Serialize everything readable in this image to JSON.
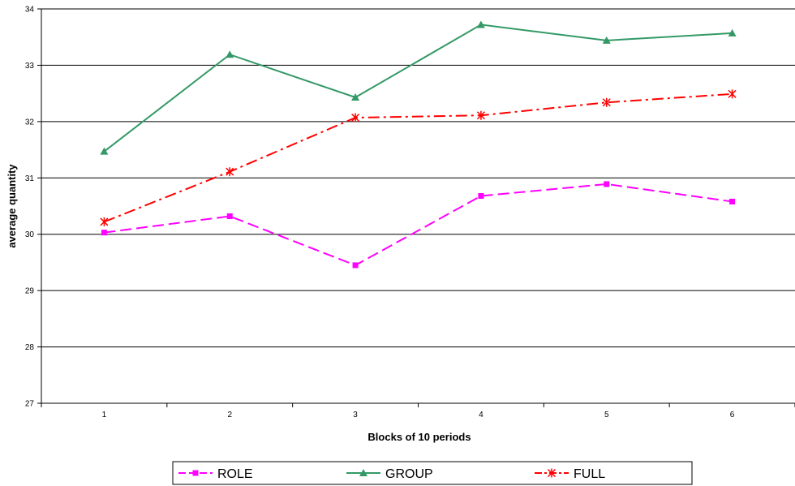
{
  "chart_data": {
    "type": "line",
    "title": "",
    "xlabel": "Blocks of 10 periods",
    "ylabel": "average quantity",
    "categories": [
      "1",
      "2",
      "3",
      "4",
      "5",
      "6"
    ],
    "yticks": [
      "27",
      "28",
      "29",
      "30",
      "31",
      "32",
      "33",
      "34"
    ],
    "ylim": [
      27,
      34
    ],
    "grid": "horizontal major gridlines",
    "legend_position": "bottom",
    "series": [
      {
        "name": "ROLE",
        "values": [
          30.03,
          30.32,
          29.45,
          30.68,
          30.89,
          30.58
        ],
        "color": "#ff00ff",
        "marker": "square",
        "dash": "dashed"
      },
      {
        "name": "GROUP",
        "values": [
          31.47,
          33.19,
          32.43,
          33.72,
          33.44,
          33.57
        ],
        "color": "#339966",
        "marker": "triangle",
        "dash": "solid"
      },
      {
        "name": "FULL",
        "values": [
          30.22,
          31.11,
          32.07,
          32.11,
          32.34,
          32.49
        ],
        "color": "#ff0000",
        "marker": "star",
        "dash": "dashdot"
      }
    ]
  }
}
